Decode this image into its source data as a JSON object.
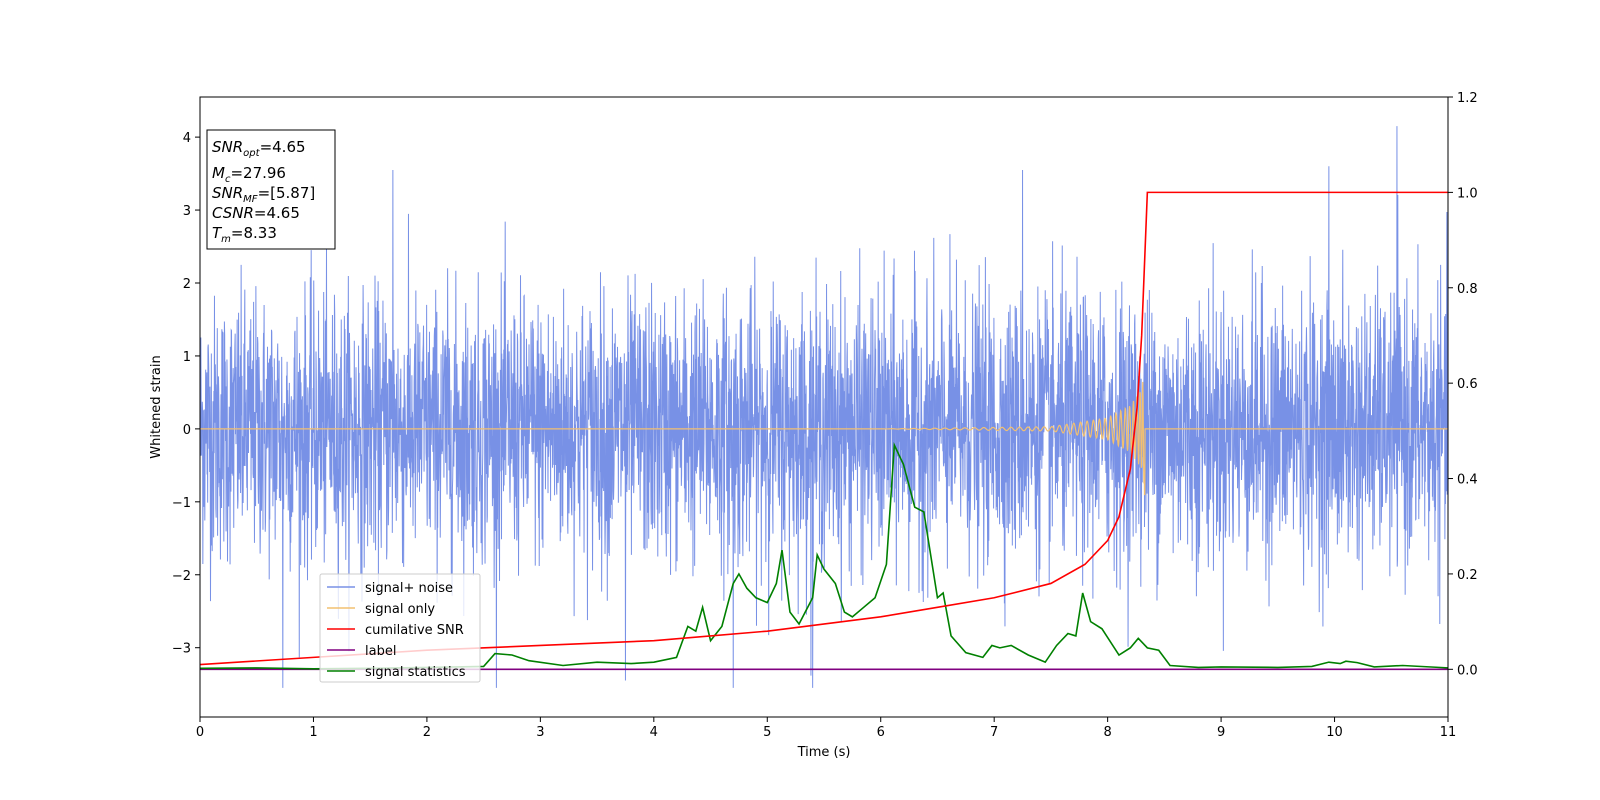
{
  "chart_data": {
    "type": "line",
    "xlabel": "Time (s)",
    "ylabel": "Whitened strain",
    "xlim": [
      0,
      11
    ],
    "ylim": [
      -3.95,
      4.55
    ],
    "y2lim": [
      -0.1,
      1.2
    ],
    "x_ticks": [
      "0",
      "1",
      "2",
      "3",
      "4",
      "5",
      "6",
      "7",
      "8",
      "9",
      "10",
      "11"
    ],
    "y_ticks": [
      "4",
      "3",
      "2",
      "1",
      "0",
      "−1",
      "−2",
      "−3"
    ],
    "y2_ticks": [
      "1.2",
      "1.0",
      "0.8",
      "0.6",
      "0.4",
      "0.2",
      "0.0"
    ],
    "grid": false,
    "legend_position": "lower-left",
    "info_box": {
      "snr_opt": {
        "var": "SNR",
        "sub": "opt",
        "value": "=4.65"
      },
      "mc": {
        "var": "M",
        "sub": "c",
        "value": "=27.96"
      },
      "snr_mf": {
        "var": "SNR",
        "sub": "MF",
        "value": "=[5.87]"
      },
      "csnr": {
        "var": "CSNR",
        "value": "=4.65"
      },
      "tm": {
        "var": "T",
        "sub": "m",
        "value": "=8.33"
      }
    },
    "series": [
      {
        "name": "signal+ noise",
        "color": "#7891e6",
        "axis": "left",
        "noise_sigma": 0.9,
        "range": [
          -3.55,
          4.15
        ],
        "spikes": [
          [
            0.73,
            -3.55
          ],
          [
            1.7,
            3.55
          ],
          [
            3.75,
            -3.45
          ],
          [
            4.7,
            -3.55
          ],
          [
            5.4,
            -3.55
          ],
          [
            7.25,
            3.55
          ],
          [
            9.95,
            3.6
          ],
          [
            10.55,
            4.15
          ]
        ]
      },
      {
        "name": "signal only",
        "color": "#f2c071",
        "axis": "left",
        "note_points": [
          [
            0,
            0.0
          ],
          [
            6.0,
            0.0
          ],
          [
            7.5,
            0.03
          ],
          [
            8.0,
            0.15
          ],
          [
            8.2,
            0.32
          ],
          [
            8.3,
            0.55
          ],
          [
            8.33,
            0.85
          ]
        ],
        "merger_time": 8.33
      },
      {
        "name": "cumilative SNR",
        "color": "#ff0000",
        "axis": "right",
        "points": [
          [
            0,
            0.01
          ],
          [
            1,
            0.025
          ],
          [
            2,
            0.04
          ],
          [
            3,
            0.05
          ],
          [
            4,
            0.06
          ],
          [
            5,
            0.08
          ],
          [
            6,
            0.11
          ],
          [
            6.5,
            0.13
          ],
          [
            7,
            0.15
          ],
          [
            7.5,
            0.18
          ],
          [
            7.8,
            0.22
          ],
          [
            8.0,
            0.27
          ],
          [
            8.1,
            0.32
          ],
          [
            8.2,
            0.42
          ],
          [
            8.26,
            0.55
          ],
          [
            8.3,
            0.7
          ],
          [
            8.33,
            0.88
          ],
          [
            8.35,
            1.0
          ],
          [
            11,
            1.0
          ]
        ]
      },
      {
        "name": "label",
        "color": "#800080",
        "axis": "right",
        "points": [
          [
            0,
            0.0
          ],
          [
            11,
            0.0
          ]
        ]
      },
      {
        "name": "signal statistics",
        "color": "#008000",
        "axis": "right",
        "points": [
          [
            0,
            0.002
          ],
          [
            0.5,
            0.003
          ],
          [
            1.0,
            0.001
          ],
          [
            1.5,
            0.002
          ],
          [
            2.0,
            0.004
          ],
          [
            2.5,
            0.006
          ],
          [
            2.6,
            0.033
          ],
          [
            2.75,
            0.03
          ],
          [
            2.9,
            0.018
          ],
          [
            3.2,
            0.008
          ],
          [
            3.5,
            0.015
          ],
          [
            3.8,
            0.012
          ],
          [
            4.0,
            0.015
          ],
          [
            4.2,
            0.025
          ],
          [
            4.3,
            0.09
          ],
          [
            4.37,
            0.08
          ],
          [
            4.43,
            0.13
          ],
          [
            4.5,
            0.06
          ],
          [
            4.6,
            0.09
          ],
          [
            4.7,
            0.18
          ],
          [
            4.75,
            0.2
          ],
          [
            4.82,
            0.17
          ],
          [
            4.9,
            0.15
          ],
          [
            5.0,
            0.14
          ],
          [
            5.08,
            0.18
          ],
          [
            5.13,
            0.25
          ],
          [
            5.2,
            0.12
          ],
          [
            5.28,
            0.095
          ],
          [
            5.4,
            0.15
          ],
          [
            5.44,
            0.24
          ],
          [
            5.5,
            0.21
          ],
          [
            5.6,
            0.18
          ],
          [
            5.68,
            0.12
          ],
          [
            5.75,
            0.11
          ],
          [
            5.85,
            0.13
          ],
          [
            5.95,
            0.15
          ],
          [
            6.05,
            0.22
          ],
          [
            6.12,
            0.47
          ],
          [
            6.2,
            0.43
          ],
          [
            6.3,
            0.34
          ],
          [
            6.38,
            0.33
          ],
          [
            6.5,
            0.15
          ],
          [
            6.55,
            0.16
          ],
          [
            6.62,
            0.07
          ],
          [
            6.75,
            0.035
          ],
          [
            6.9,
            0.025
          ],
          [
            6.98,
            0.05
          ],
          [
            7.05,
            0.045
          ],
          [
            7.15,
            0.05
          ],
          [
            7.3,
            0.03
          ],
          [
            7.45,
            0.015
          ],
          [
            7.55,
            0.05
          ],
          [
            7.65,
            0.075
          ],
          [
            7.72,
            0.07
          ],
          [
            7.78,
            0.16
          ],
          [
            7.85,
            0.1
          ],
          [
            7.95,
            0.085
          ],
          [
            8.1,
            0.03
          ],
          [
            8.2,
            0.045
          ],
          [
            8.27,
            0.065
          ],
          [
            8.35,
            0.045
          ],
          [
            8.45,
            0.04
          ],
          [
            8.55,
            0.008
          ],
          [
            8.8,
            0.004
          ],
          [
            9.0,
            0.005
          ],
          [
            9.5,
            0.004
          ],
          [
            9.8,
            0.006
          ],
          [
            9.95,
            0.015
          ],
          [
            10.05,
            0.012
          ],
          [
            10.1,
            0.017
          ],
          [
            10.2,
            0.014
          ],
          [
            10.35,
            0.005
          ],
          [
            10.6,
            0.008
          ],
          [
            11,
            0.003
          ]
        ]
      }
    ]
  }
}
